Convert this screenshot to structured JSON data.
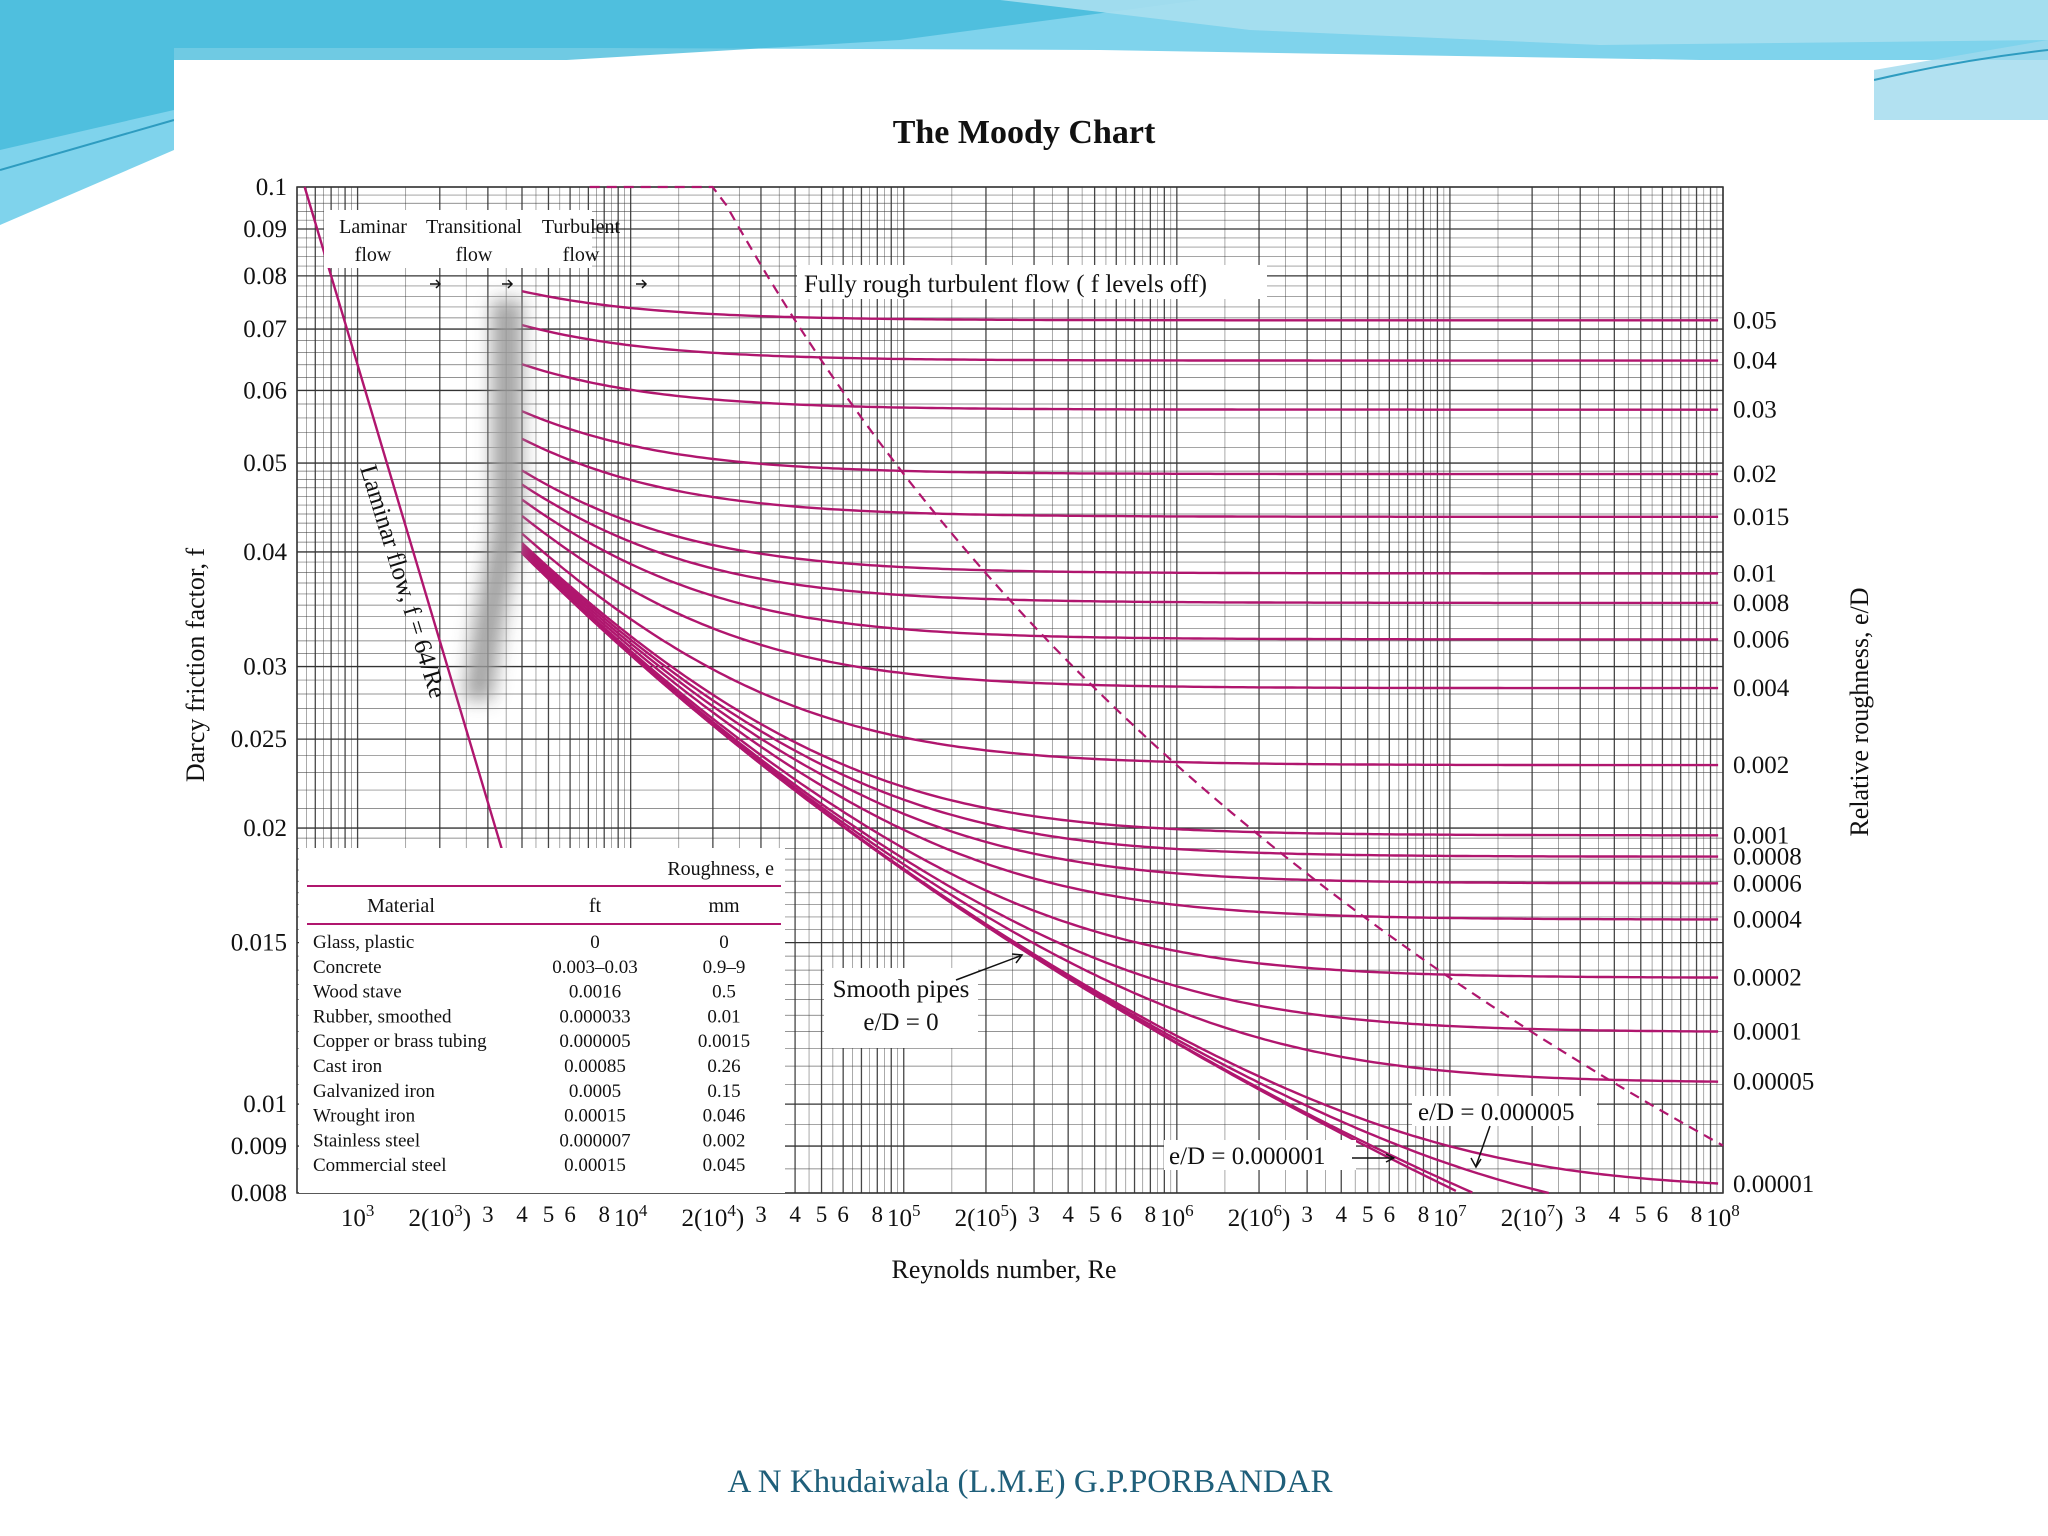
{
  "footer": {
    "text": "A N Khudaiwala  (L.M.E) G.P.PORBANDAR"
  },
  "colors": {
    "curve": "#b0166e",
    "grid": "#333333",
    "text": "#111111",
    "slide_top": "#5cc8e6"
  },
  "chart_data": {
    "type": "line",
    "title": "The Moody Chart",
    "xlabel": "Reynolds number, Re",
    "ylabel": "Darcy friction factor, f",
    "y2label": "Relative roughness, e/D",
    "xscale": "log",
    "yscale": "log",
    "xlim": [
      600,
      100000000
    ],
    "ylim": [
      0.008,
      0.1
    ],
    "grid": true,
    "x_tick_labels": [
      {
        "x": 1000,
        "label": "10^3"
      },
      {
        "x": 2000,
        "label": "2(10^3)"
      },
      {
        "x": 3000,
        "label": "3"
      },
      {
        "x": 4000,
        "label": "4"
      },
      {
        "x": 5000,
        "label": "5"
      },
      {
        "x": 6000,
        "label": "6"
      },
      {
        "x": 8000,
        "label": "8"
      },
      {
        "x": 10000,
        "label": "10^4"
      },
      {
        "x": 20000,
        "label": "2(10^4)"
      },
      {
        "x": 30000,
        "label": "3"
      },
      {
        "x": 40000,
        "label": "4"
      },
      {
        "x": 50000,
        "label": "5"
      },
      {
        "x": 60000,
        "label": "6"
      },
      {
        "x": 80000,
        "label": "8"
      },
      {
        "x": 100000,
        "label": "10^5"
      },
      {
        "x": 200000,
        "label": "2(10^5)"
      },
      {
        "x": 300000,
        "label": "3"
      },
      {
        "x": 400000,
        "label": "4"
      },
      {
        "x": 500000,
        "label": "5"
      },
      {
        "x": 600000,
        "label": "6"
      },
      {
        "x": 800000,
        "label": "8"
      },
      {
        "x": 1000000,
        "label": "10^6"
      },
      {
        "x": 2000000,
        "label": "2(10^6)"
      },
      {
        "x": 3000000,
        "label": "3"
      },
      {
        "x": 4000000,
        "label": "4"
      },
      {
        "x": 5000000,
        "label": "5"
      },
      {
        "x": 6000000,
        "label": "6"
      },
      {
        "x": 8000000,
        "label": "8"
      },
      {
        "x": 10000000,
        "label": "10^7"
      },
      {
        "x": 20000000,
        "label": "2(10^7)"
      },
      {
        "x": 30000000,
        "label": "3"
      },
      {
        "x": 40000000,
        "label": "4"
      },
      {
        "x": 50000000,
        "label": "5"
      },
      {
        "x": 60000000,
        "label": "6"
      },
      {
        "x": 80000000,
        "label": "8"
      },
      {
        "x": 100000000,
        "label": "10^8"
      }
    ],
    "y_ticks": [
      {
        "y": 0.1,
        "label": "0.1"
      },
      {
        "y": 0.09,
        "label": "0.09"
      },
      {
        "y": 0.08,
        "label": "0.08"
      },
      {
        "y": 0.07,
        "label": "0.07"
      },
      {
        "y": 0.06,
        "label": "0.06"
      },
      {
        "y": 0.05,
        "label": "0.05"
      },
      {
        "y": 0.04,
        "label": "0.04"
      },
      {
        "y": 0.03,
        "label": "0.03"
      },
      {
        "y": 0.025,
        "label": "0.025"
      },
      {
        "y": 0.02,
        "label": "0.02"
      },
      {
        "y": 0.015,
        "label": "0.015"
      },
      {
        "y": 0.01,
        "label": "0.01"
      },
      {
        "y": 0.009,
        "label": "0.009"
      },
      {
        "y": 0.008,
        "label": "0.008"
      }
    ],
    "series": [
      {
        "name": "0.05",
        "eD": 0.05
      },
      {
        "name": "0.04",
        "eD": 0.04
      },
      {
        "name": "0.03",
        "eD": 0.03
      },
      {
        "name": "0.02",
        "eD": 0.02
      },
      {
        "name": "0.015",
        "eD": 0.015
      },
      {
        "name": "0.01",
        "eD": 0.01
      },
      {
        "name": "0.008",
        "eD": 0.008
      },
      {
        "name": "0.006",
        "eD": 0.006
      },
      {
        "name": "0.004",
        "eD": 0.004
      },
      {
        "name": "0.002",
        "eD": 0.002
      },
      {
        "name": "0.001",
        "eD": 0.001
      },
      {
        "name": "0.0008",
        "eD": 0.0008
      },
      {
        "name": "0.0006",
        "eD": 0.0006
      },
      {
        "name": "0.0004",
        "eD": 0.0004
      },
      {
        "name": "0.0002",
        "eD": 0.0002
      },
      {
        "name": "0.0001",
        "eD": 0.0001
      },
      {
        "name": "0.00005",
        "eD": 5e-05
      },
      {
        "name": "0.00001",
        "eD": 1e-05
      },
      {
        "name": "e/D = 0.000005",
        "eD": 5e-06
      },
      {
        "name": "e/D = 0.000001",
        "eD": 1e-06
      },
      {
        "name": "Smooth pipes e/D = 0",
        "eD": 0
      }
    ],
    "annotations": {
      "laminar_region": "Laminar flow",
      "transitional_region": "Transitional flow",
      "turbulent_region": "Turbulent flow",
      "fully_rough": "Fully rough turbulent flow ( f levels off)",
      "laminar_line": "Laminar flow, f = 64/Re",
      "smooth_line1": "Smooth pipes",
      "smooth_line2": "e/D = 0",
      "ed_5e6": "e/D = 0.000005",
      "ed_1e6": "e/D = 0.000001"
    },
    "roughness_table": {
      "title": "Roughness, e",
      "headers": [
        "Material",
        "ft",
        "mm"
      ],
      "rows": [
        [
          "Glass, plastic",
          "0",
          "0"
        ],
        [
          "Concrete",
          "0.003–0.03",
          "0.9–9"
        ],
        [
          "Wood stave",
          "0.0016",
          "0.5"
        ],
        [
          "Rubber, smoothed",
          "0.000033",
          "0.01"
        ],
        [
          "Copper or brass tubing",
          "0.000005",
          "0.0015"
        ],
        [
          "Cast iron",
          "0.00085",
          "0.26"
        ],
        [
          "Galvanized iron",
          "0.0005",
          "0.15"
        ],
        [
          "Wrought iron",
          "0.00015",
          "0.046"
        ],
        [
          "Stainless steel",
          "0.000007",
          "0.002"
        ],
        [
          "Commercial steel",
          "0.00015",
          "0.045"
        ]
      ]
    }
  }
}
